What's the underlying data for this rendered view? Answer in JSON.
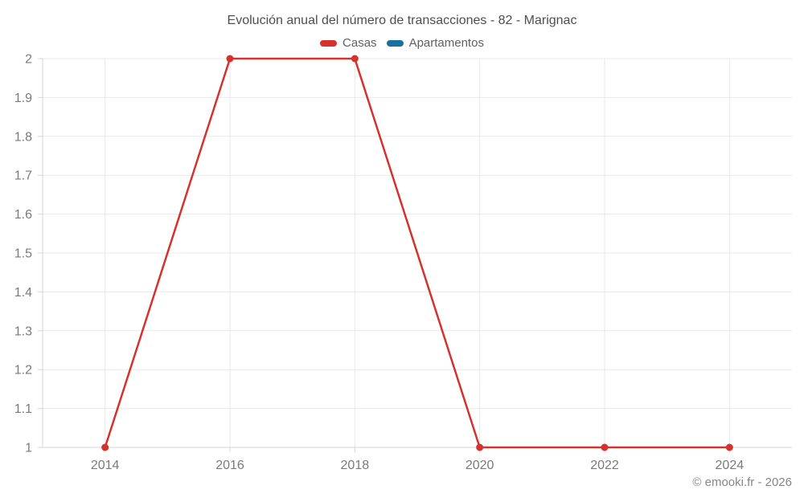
{
  "chart_data": {
    "type": "line",
    "title": "Evolución anual del número de transacciones - 82 - Marignac",
    "xlabel": "",
    "ylabel": "",
    "x": [
      2014,
      2016,
      2018,
      2020,
      2022,
      2024
    ],
    "x_tick_labels": [
      "2014",
      "2016",
      "2018",
      "2020",
      "2022",
      "2024"
    ],
    "y_tick_labels": [
      "1",
      "1.1",
      "1.2",
      "1.3",
      "1.4",
      "1.5",
      "1.6",
      "1.7",
      "1.8",
      "1.9",
      "2"
    ],
    "y_tick_values": [
      1,
      1.1,
      1.2,
      1.3,
      1.4,
      1.5,
      1.6,
      1.7,
      1.8,
      1.9,
      2
    ],
    "xlim": [
      2013,
      2025
    ],
    "ylim": [
      1,
      2
    ],
    "grid": true,
    "legend_position": "top",
    "series": [
      {
        "name": "Casas",
        "color": "#d3322d",
        "marker": "circle",
        "values": [
          1,
          2,
          2,
          1,
          1,
          1
        ]
      },
      {
        "name": "Apartamentos",
        "color": "#17719e",
        "marker": "circle",
        "values": []
      }
    ]
  },
  "footer": {
    "copyright": "© emooki.fr - 2026"
  },
  "colors": {
    "grid": "#e9e9e9",
    "axis": "#d4d4d4",
    "tick_label": "#7a7a7a",
    "title": "#4e4e4e",
    "legend_text": "#606060",
    "copyright": "#878787",
    "background": "#ffffff"
  }
}
